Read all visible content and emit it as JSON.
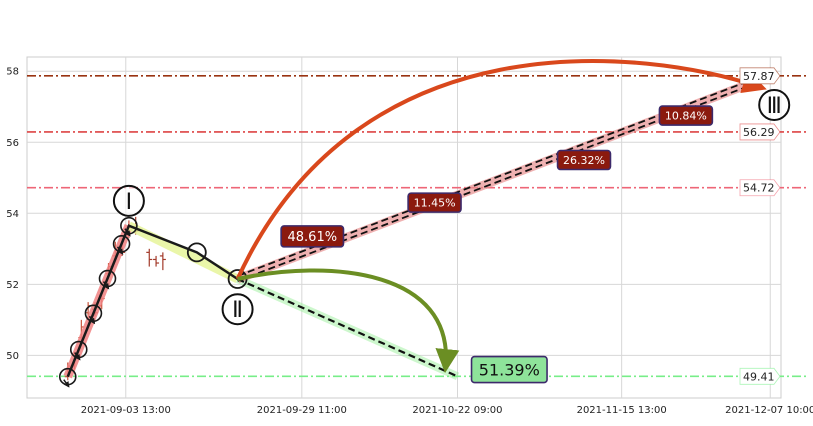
{
  "chart_data": {
    "type": "line",
    "title": "",
    "xlabel": "",
    "ylabel": "",
    "grid": true,
    "ylim": [
      48.8,
      58.4
    ],
    "xlim": [
      "2021-08-20 00:00",
      "2021-12-09 00:00"
    ],
    "x_ticks": [
      {
        "x": "2021-09-03 13:00",
        "label": "2021-09-03 13:00"
      },
      {
        "x": "2021-09-29 11:00",
        "label": "2021-09-29 11:00"
      },
      {
        "x": "2021-10-22 09:00",
        "label": "2021-10-22 09:00"
      },
      {
        "x": "2021-11-15 13:00",
        "label": "2021-11-15 13:00"
      },
      {
        "x": "2021-12-07 10:00",
        "label": "2021-12-07 10:00"
      }
    ],
    "y_ticks": [
      50,
      52,
      54,
      56,
      58
    ],
    "price_bars": [
      {
        "x": "2021-08-26 00:00",
        "open": 49.4,
        "close": 49.7,
        "high": 49.8,
        "low": 49.3
      },
      {
        "x": "2021-08-27 00:00",
        "open": 49.7,
        "close": 50.0,
        "high": 50.1,
        "low": 49.6
      },
      {
        "x": "2021-08-28 00:00",
        "open": 50.5,
        "close": 50.8,
        "high": 51.0,
        "low": 50.4
      },
      {
        "x": "2021-08-29 00:00",
        "open": 51.2,
        "close": 51.4,
        "high": 51.5,
        "low": 51.0
      },
      {
        "x": "2021-08-30 00:00",
        "open": 51.3,
        "close": 51.2,
        "high": 51.5,
        "low": 51.1
      },
      {
        "x": "2021-08-31 00:00",
        "open": 51.4,
        "close": 51.6,
        "high": 51.7,
        "low": 51.3
      },
      {
        "x": "2021-09-01 00:00",
        "open": 52.3,
        "close": 52.5,
        "high": 52.6,
        "low": 52.2
      },
      {
        "x": "2021-09-02 00:00",
        "open": 52.8,
        "close": 53.0,
        "high": 53.2,
        "low": 52.7
      },
      {
        "x": "2021-09-03 00:00",
        "open": 53.0,
        "close": 52.9,
        "high": 53.3,
        "low": 52.8
      },
      {
        "x": "2021-09-04 00:00",
        "open": 53.4,
        "close": 53.6,
        "high": 53.8,
        "low": 53.3
      },
      {
        "x": "2021-09-05 00:00",
        "open": 53.6,
        "close": 53.5,
        "high": 53.9,
        "low": 53.4
      },
      {
        "x": "2021-09-07 00:00",
        "open": 52.9,
        "close": 52.7,
        "high": 53.0,
        "low": 52.5
      },
      {
        "x": "2021-09-08 00:00",
        "open": 52.7,
        "close": 52.6,
        "high": 52.8,
        "low": 52.5
      },
      {
        "x": "2021-09-09 00:00",
        "open": 52.8,
        "close": 52.7,
        "high": 52.9,
        "low": 52.4
      }
    ],
    "swing_path": [
      {
        "x": "2021-08-26 00:00",
        "y": 49.4
      },
      {
        "x": "2021-09-04 00:00",
        "y": 53.65
      },
      {
        "x": "2021-09-14 00:00",
        "y": 52.9
      },
      {
        "x": "2021-09-20 00:00",
        "y": 52.15
      }
    ],
    "swing_labels": [
      {
        "name": "I",
        "text": "Ⅰ",
        "x": "2021-09-04 00:00",
        "y": 54.35
      },
      {
        "name": "II",
        "text": "Ⅱ",
        "x": "2021-09-20 00:00",
        "y": 51.3
      },
      {
        "name": "III",
        "text": "Ⅲ",
        "x": "2021-12-08 00:00",
        "y": 57.05
      }
    ],
    "horizontal_levels": [
      {
        "value": 57.87,
        "label": "57.87",
        "color": "#993311"
      },
      {
        "value": 56.29,
        "label": "56.29",
        "color": "#dd4444"
      },
      {
        "value": 54.72,
        "label": "54.72",
        "color": "#ee6677"
      },
      {
        "value": 49.41,
        "label": "49.41",
        "color": "#77ee88"
      }
    ],
    "projections": [
      {
        "from": {
          "x": "2021-09-20 00:00",
          "y": 52.15
        },
        "to": {
          "x": "2021-10-22 09:00",
          "y": 49.41
        },
        "color": "#2b2b2b"
      },
      {
        "from": {
          "x": "2021-09-20 00:00",
          "y": 52.15
        },
        "to": {
          "x": "2021-12-07 10:00",
          "y": 57.87
        },
        "color": "#2b2b2b"
      }
    ],
    "percent_labels": [
      {
        "text": "48.61%",
        "x": "2021-10-01 00:00",
        "y": 53.35,
        "size": "medium"
      },
      {
        "text": "11.45%",
        "x": "2021-10-19 00:00",
        "y": 54.3,
        "size": "small"
      },
      {
        "text": "26.32%",
        "x": "2021-11-10 00:00",
        "y": 55.5,
        "size": "small"
      },
      {
        "text": "10.84%",
        "x": "2021-11-25 00:00",
        "y": 56.75,
        "size": "small"
      },
      {
        "text": "51.39%",
        "x": "2021-10-30 00:00",
        "y": 49.6,
        "size": "large"
      }
    ]
  }
}
